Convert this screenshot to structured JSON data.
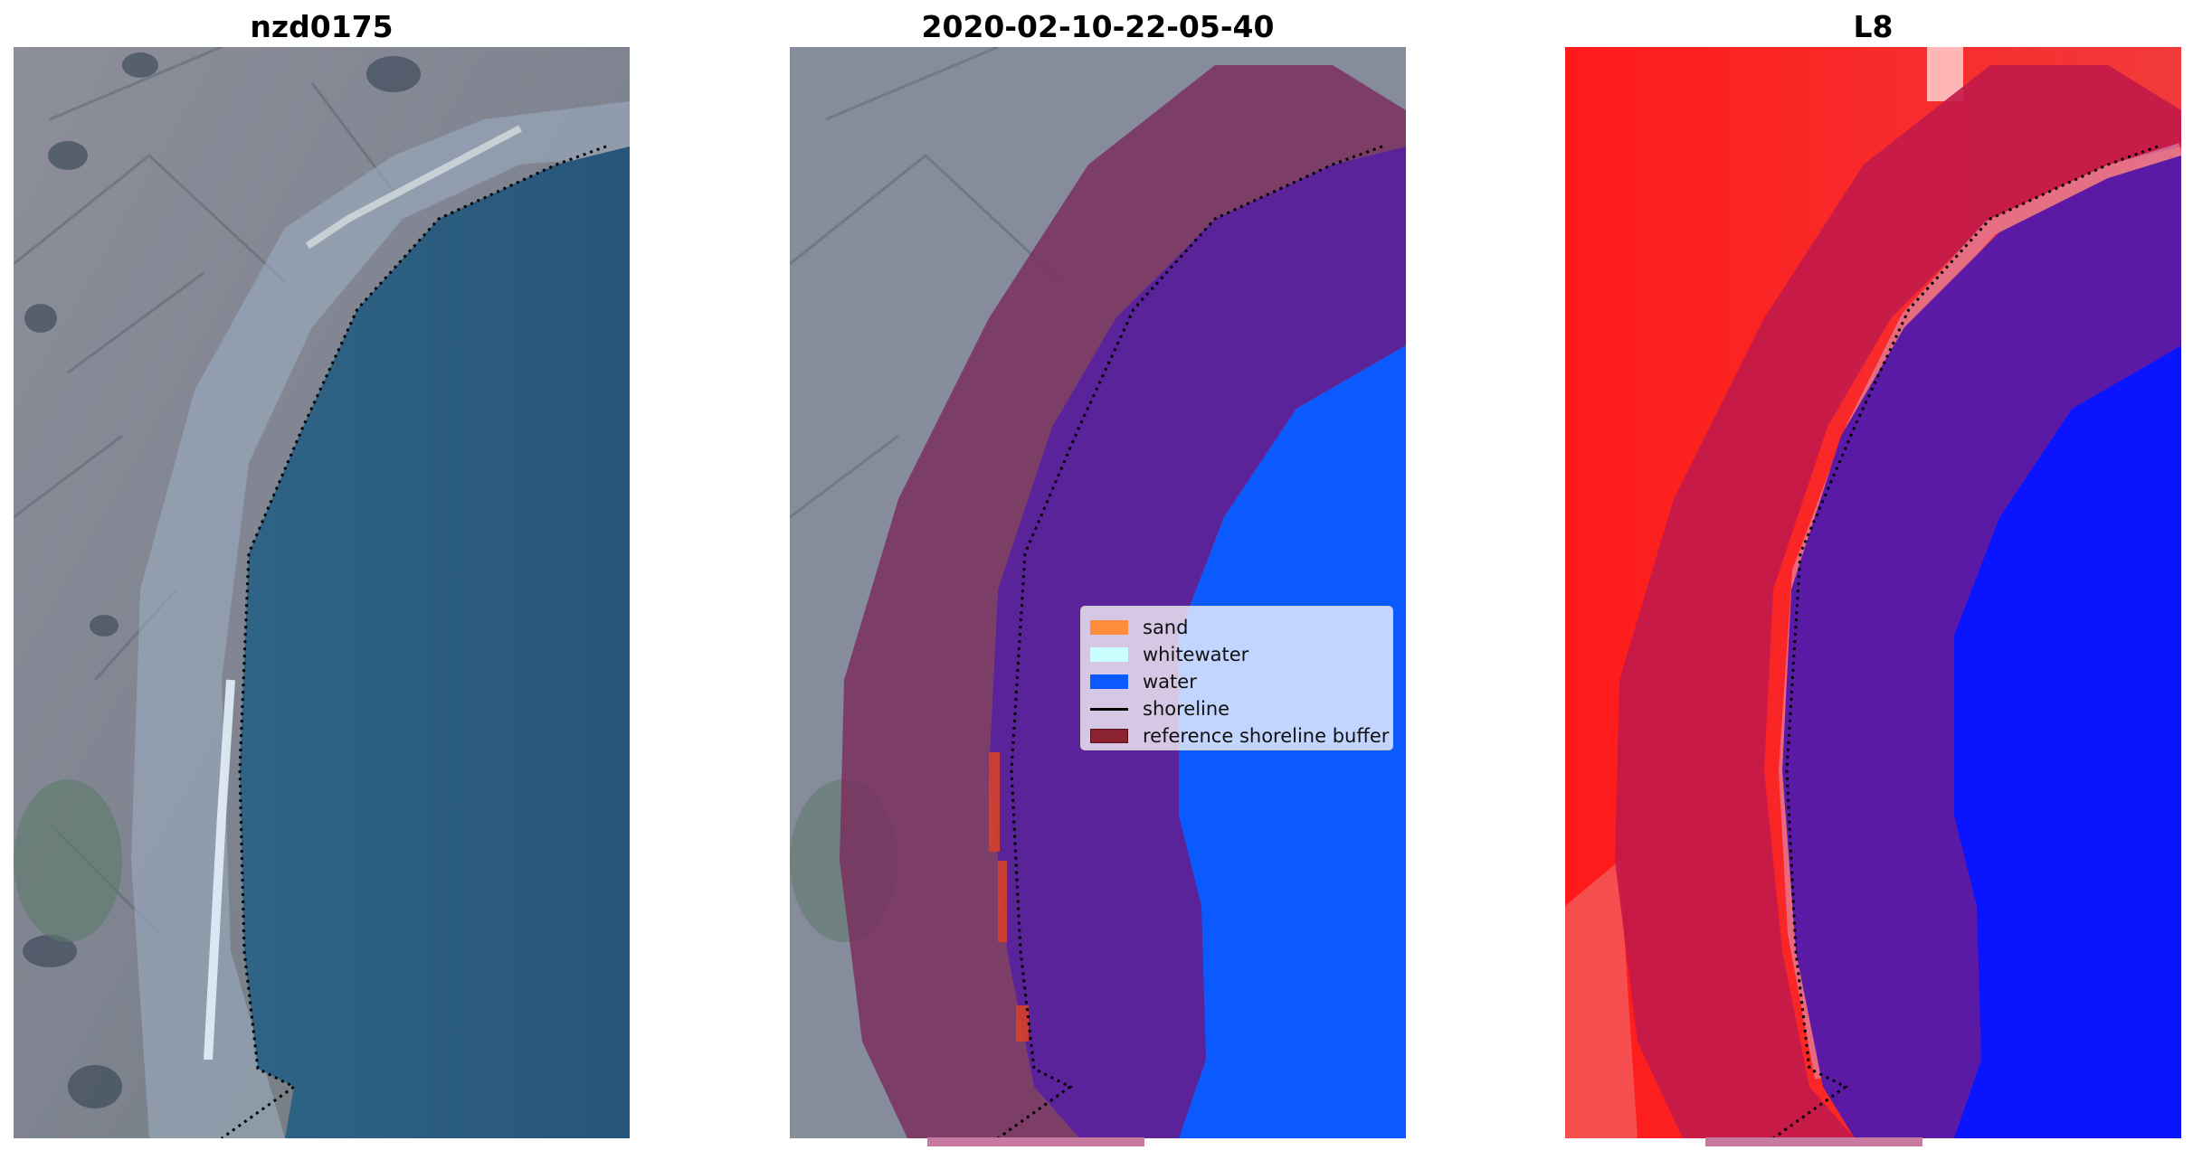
{
  "panels": [
    {
      "title": "nzd0175"
    },
    {
      "title": "2020-02-10-22-05-40"
    },
    {
      "title": "L8"
    }
  ],
  "legend": {
    "items": [
      {
        "label": "sand",
        "color": "#ff8c3a",
        "kind": "patch"
      },
      {
        "label": "whitewater",
        "color": "#c9ffff",
        "kind": "patch"
      },
      {
        "label": "water",
        "color": "#0a5aff",
        "kind": "patch"
      },
      {
        "label": "shoreline",
        "color": "#000000",
        "kind": "line"
      },
      {
        "label": "reference shoreline buffer",
        "color": "#8b2330",
        "kind": "patch"
      }
    ]
  },
  "colors": {
    "land": "#8a8e9e",
    "sea_rgb": "#2c5a82",
    "water_class": "#0a5aff",
    "buffer_purple": "#5b2399",
    "buffer_land": "#7a2f5e",
    "index_red": "#ff1a1a",
    "index_blue": "#0a14ff"
  }
}
